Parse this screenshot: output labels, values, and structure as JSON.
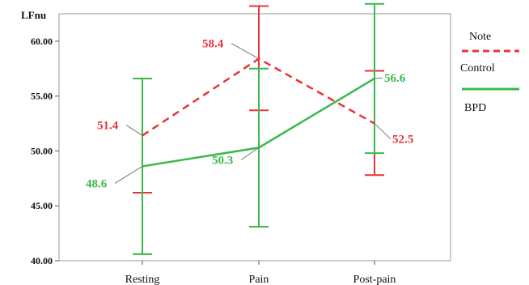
{
  "chart_data": {
    "type": "line",
    "ylabel": "LFnu",
    "categories": [
      "Resting",
      "Pain",
      "Post-pain"
    ],
    "ylim": [
      40,
      62.5
    ],
    "yticks": [
      "40.00",
      "45.00",
      "50.00",
      "55.00",
      "60.00"
    ],
    "ytick_values": [
      40,
      45,
      50,
      55,
      60
    ],
    "grid": false,
    "legend": {
      "position": "right",
      "title": "Note",
      "entries": [
        "Control",
        "BPD"
      ]
    },
    "series": [
      {
        "name": "Control",
        "color": "#e8333a",
        "dash": true,
        "values": [
          51.4,
          58.4,
          52.5
        ],
        "labels": [
          "51.4",
          "58.4",
          "52.5"
        ],
        "error_low": [
          46.2,
          53.7,
          47.8
        ],
        "error_high": [
          56.6,
          63.2,
          57.3
        ]
      },
      {
        "name": "BPD",
        "color": "#3cb84a",
        "dash": false,
        "values": [
          48.6,
          50.3,
          56.6
        ],
        "labels": [
          "48.6",
          "50.3",
          "56.6"
        ],
        "error_low": [
          40.6,
          43.1,
          49.8
        ],
        "error_high": [
          56.6,
          57.5,
          63.4
        ]
      }
    ]
  }
}
